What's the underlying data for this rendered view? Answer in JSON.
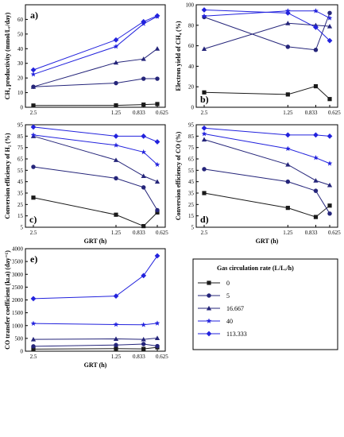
{
  "colors": {
    "black": "#1a1a1a",
    "navy": "#25257a",
    "blue": "#2222dd"
  },
  "legend": {
    "title": "Gas circulation rate (L/Lᵣ/h)",
    "entries": [
      "0",
      "5",
      "16.667",
      "40",
      "113.333"
    ]
  },
  "chart_data": [
    {
      "id": "a",
      "panel_label": "a)",
      "type": "line",
      "ylabel": "CH₄ productivity (mmol/Lᵣ/day)",
      "xlabel": "",
      "x_ticks": [
        "2.5",
        "1.25",
        "0.833",
        "0.625"
      ],
      "y_ticks": [
        "0",
        "10",
        "20",
        "30",
        "40",
        "50",
        "60"
      ],
      "ylim": [
        0,
        70
      ],
      "series": [
        {
          "name": "0",
          "values": [
            1.2,
            1.3,
            1.8,
            2.2
          ]
        },
        {
          "name": "5",
          "values": [
            14,
            16.5,
            19.5,
            19.5
          ]
        },
        {
          "name": "16.667",
          "values": [
            14,
            30.5,
            33,
            40
          ]
        },
        {
          "name": "40",
          "values": [
            22.5,
            41.5,
            57,
            62
          ]
        },
        {
          "name": "113.333",
          "values": [
            25.5,
            46,
            58.5,
            62.5
          ]
        }
      ]
    },
    {
      "id": "b",
      "panel_label": "b)",
      "type": "line",
      "ylabel": "Electron yield of CH₄ (%)",
      "xlabel": "",
      "x_ticks": [
        "2.5",
        "1.25",
        "0.833",
        "0.625"
      ],
      "y_ticks": [
        "0",
        "20",
        "40",
        "60",
        "80",
        "100"
      ],
      "ylim": [
        0,
        100
      ],
      "series": [
        {
          "name": "0",
          "values": [
            14.5,
            12.5,
            20.5,
            8
          ]
        },
        {
          "name": "5",
          "values": [
            88,
            59,
            56,
            92
          ]
        },
        {
          "name": "16.667",
          "values": [
            57,
            82,
            80,
            79
          ]
        },
        {
          "name": "40",
          "values": [
            89,
            94,
            94,
            87
          ]
        },
        {
          "name": "113.333",
          "values": [
            95,
            92,
            78,
            65
          ]
        }
      ]
    },
    {
      "id": "c",
      "panel_label": "c)",
      "type": "line",
      "ylabel": "Conversion efficiency of H₂ (%)",
      "xlabel": "GRT (h)",
      "x_ticks": [
        "2.5",
        "1.25",
        "0.833",
        "0.625"
      ],
      "y_ticks": [
        "5",
        "15",
        "25",
        "35",
        "45",
        "55",
        "65",
        "75",
        "85",
        "95"
      ],
      "ylim": [
        5,
        95
      ],
      "series": [
        {
          "name": "0",
          "values": [
            31,
            16,
            6,
            18
          ]
        },
        {
          "name": "5",
          "values": [
            58,
            48,
            40,
            20
          ]
        },
        {
          "name": "16.667",
          "values": [
            85,
            64,
            50,
            45
          ]
        },
        {
          "name": "40",
          "values": [
            86,
            77,
            71,
            60
          ]
        },
        {
          "name": "113.333",
          "values": [
            93,
            85,
            85,
            80
          ]
        }
      ]
    },
    {
      "id": "d",
      "panel_label": "d)",
      "type": "line",
      "ylabel": "Conversion efficiency of CO (%)",
      "xlabel": "GRT (h)",
      "x_ticks": [
        "2.5",
        "1.25",
        "0.833",
        "0.625"
      ],
      "y_ticks": [
        "5",
        "15",
        "25",
        "35",
        "45",
        "55",
        "65",
        "75",
        "85",
        "95"
      ],
      "ylim": [
        5,
        95
      ],
      "series": [
        {
          "name": "0",
          "values": [
            35,
            22,
            14,
            24
          ]
        },
        {
          "name": "5",
          "values": [
            56,
            45,
            37,
            17
          ]
        },
        {
          "name": "16.667",
          "values": [
            82,
            60,
            46,
            42
          ]
        },
        {
          "name": "40",
          "values": [
            87,
            74,
            66,
            61
          ]
        },
        {
          "name": "113.333",
          "values": [
            92,
            86,
            86,
            85
          ]
        }
      ]
    },
    {
      "id": "e",
      "panel_label": "e)",
      "type": "line",
      "ylabel": "CO transfer coefficient (kʟa) (day⁻¹)",
      "xlabel": "GRT (h)",
      "x_ticks": [
        "2.5",
        "1.25",
        "0.833",
        "0.625"
      ],
      "y_ticks": [
        "0",
        "500",
        "1000",
        "1500",
        "2000",
        "2500",
        "3000",
        "3500",
        "4000"
      ],
      "ylim": [
        0,
        4000
      ],
      "series": [
        {
          "name": "0",
          "values": [
            80,
            100,
            90,
            150
          ]
        },
        {
          "name": "5",
          "values": [
            190,
            240,
            280,
            200
          ]
        },
        {
          "name": "16.667",
          "values": [
            460,
            480,
            460,
            510
          ]
        },
        {
          "name": "40",
          "values": [
            1080,
            1040,
            1030,
            1090
          ]
        },
        {
          "name": "113.333",
          "values": [
            2050,
            2150,
            2950,
            3720
          ]
        }
      ]
    }
  ]
}
